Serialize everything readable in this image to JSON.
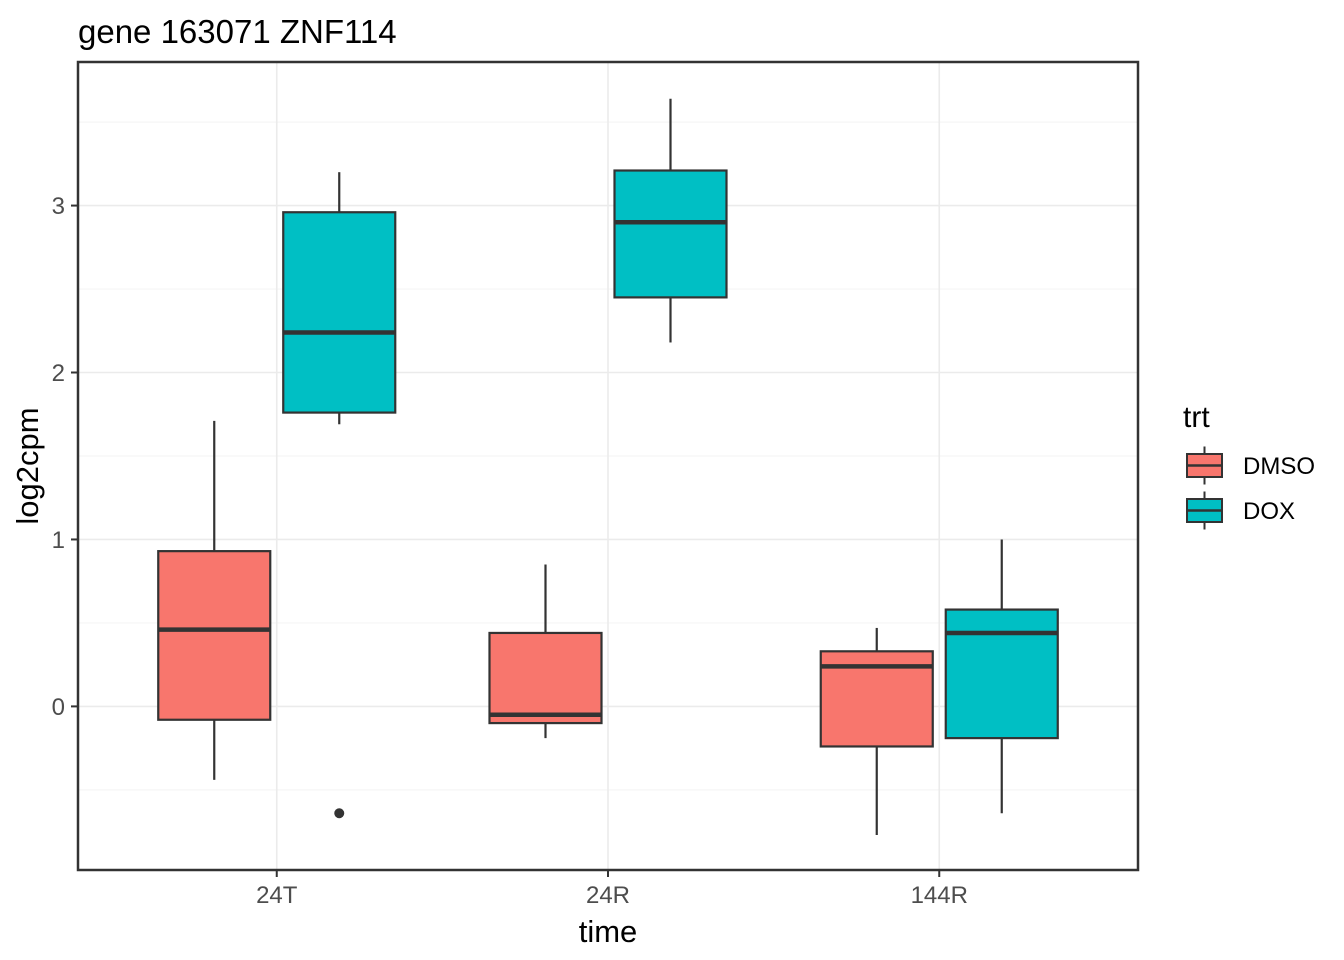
{
  "chart_data": {
    "type": "boxplot",
    "title": "gene 163071 ZNF114",
    "xlabel": "time",
    "ylabel": "log2cpm",
    "categories": [
      "24T",
      "24R",
      "144R"
    ],
    "ylim": [
      -0.98,
      3.86
    ],
    "yticks": [
      0,
      1,
      2,
      3
    ],
    "minor_gridlines": [
      -0.5,
      0.5,
      1.5,
      2.5,
      3.5
    ],
    "grid": "on",
    "legend": {
      "title": "trt",
      "position": "right",
      "entries": [
        {
          "label": "DMSO",
          "color": "#F8766D"
        },
        {
          "label": "DOX",
          "color": "#00BFC4"
        }
      ]
    },
    "series": [
      {
        "name": "DMSO",
        "color": "#F8766D",
        "boxes": [
          {
            "category": "24T",
            "whisker_low": -0.44,
            "q1": -0.08,
            "median": 0.46,
            "q3": 0.93,
            "whisker_high": 1.71,
            "outliers": []
          },
          {
            "category": "24R",
            "whisker_low": -0.19,
            "q1": -0.1,
            "median": -0.05,
            "q3": 0.44,
            "whisker_high": 0.85,
            "outliers": []
          },
          {
            "category": "144R",
            "whisker_low": -0.77,
            "q1": -0.24,
            "median": 0.24,
            "q3": 0.33,
            "whisker_high": 0.47,
            "outliers": []
          }
        ]
      },
      {
        "name": "DOX",
        "color": "#00BFC4",
        "boxes": [
          {
            "category": "24T",
            "whisker_low": 1.69,
            "q1": 1.76,
            "median": 2.24,
            "q3": 2.96,
            "whisker_high": 3.2,
            "outliers": [
              -0.64
            ]
          },
          {
            "category": "24R",
            "whisker_low": 2.18,
            "q1": 2.45,
            "median": 2.9,
            "q3": 3.21,
            "whisker_high": 3.64,
            "outliers": []
          },
          {
            "category": "144R",
            "whisker_low": -0.64,
            "q1": -0.19,
            "median": 0.44,
            "q3": 0.58,
            "whisker_high": 1.0,
            "outliers": []
          }
        ]
      }
    ],
    "style": {
      "box_border_color": "#333333",
      "median_color": "#333333",
      "whisker_color": "#333333",
      "outlier_color": "#333333",
      "panel_border_color": "#333333",
      "grid_major_color": "#EBEBEB",
      "grid_minor_color": "#F5F5F5",
      "tick_mark_color": "#333333",
      "tick_label_color": "#4D4D4D",
      "text_color": "#000000",
      "background": "#FFFFFF"
    }
  }
}
